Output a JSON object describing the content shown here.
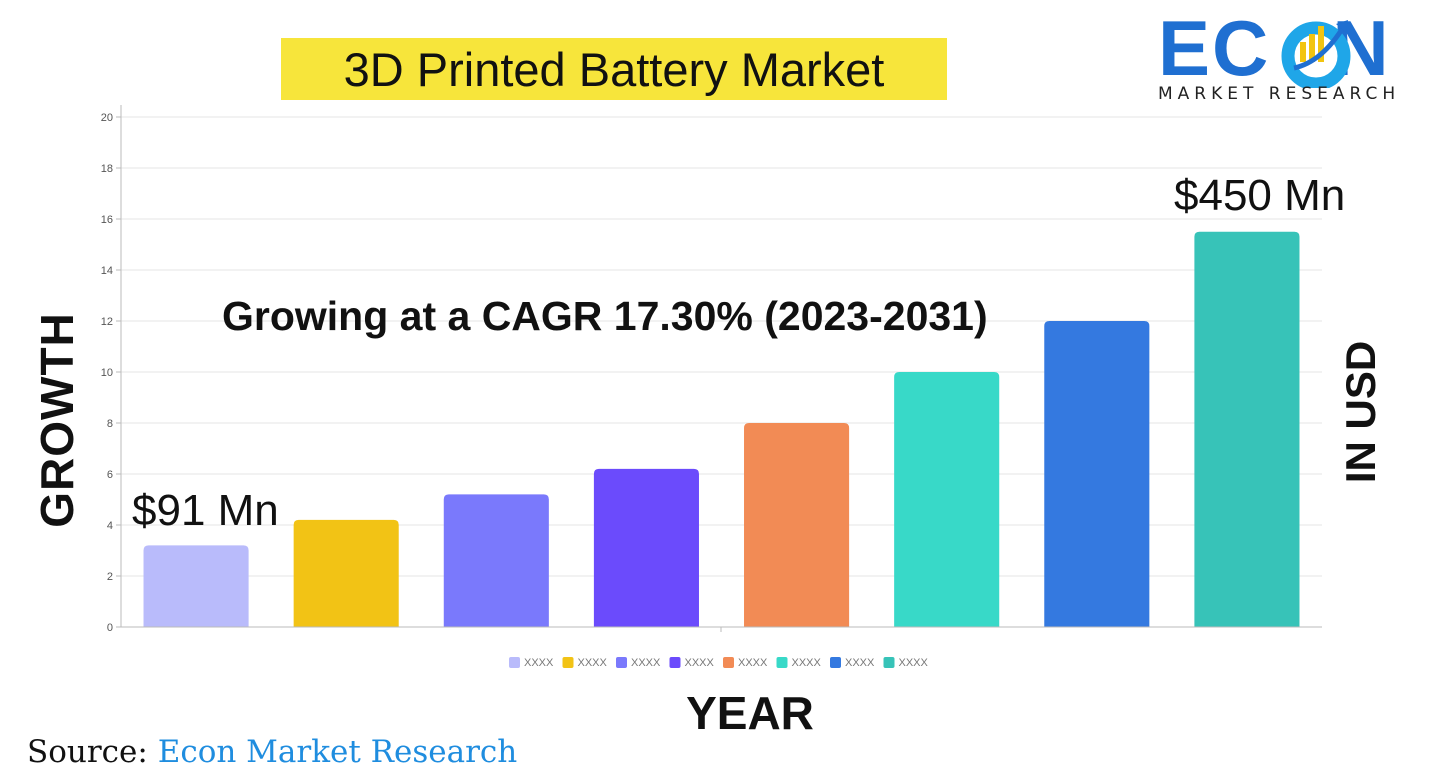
{
  "title": "3D Printed Battery Market",
  "logo": {
    "brand": "ECON",
    "tagline": "MARKET RESEARCH",
    "colors": {
      "dark_blue": "#1f6fd1",
      "light_blue": "#1fa6e8",
      "yellow": "#f2c40f"
    }
  },
  "axis_labels": {
    "left": "GROWTH",
    "right": "IN USD",
    "bottom": "YEAR"
  },
  "annotations": {
    "cagr": "Growing at a CAGR 17.30% (2023-2031)",
    "start_value": "$91 Mn",
    "end_value": "$450 Mn"
  },
  "source": {
    "prefix": "Source:",
    "name": "Econ Market Research"
  },
  "chart_data": {
    "type": "bar",
    "title": "3D Printed Battery Market",
    "xlabel": "YEAR",
    "ylabel": "GROWTH",
    "ylim": [
      0,
      20
    ],
    "yticks": [
      0,
      2,
      4,
      6,
      8,
      10,
      12,
      14,
      16,
      18,
      20
    ],
    "grid": true,
    "legend_position": "bottom",
    "series": [
      {
        "name": "XXXX",
        "value": 3.2,
        "color": "#b9bbfb"
      },
      {
        "name": "XXXX",
        "value": 4.2,
        "color": "#f2c315"
      },
      {
        "name": "XXXX",
        "value": 5.2,
        "color": "#7a79fc"
      },
      {
        "name": "XXXX",
        "value": 6.2,
        "color": "#6b4bfc"
      },
      {
        "name": "XXXX",
        "value": 8.0,
        "color": "#f28b55"
      },
      {
        "name": "XXXX",
        "value": 10.0,
        "color": "#38d9c8"
      },
      {
        "name": "XXXX",
        "value": 12.0,
        "color": "#3479e0"
      },
      {
        "name": "XXXX",
        "value": 15.5,
        "color": "#37c3b8"
      }
    ]
  }
}
